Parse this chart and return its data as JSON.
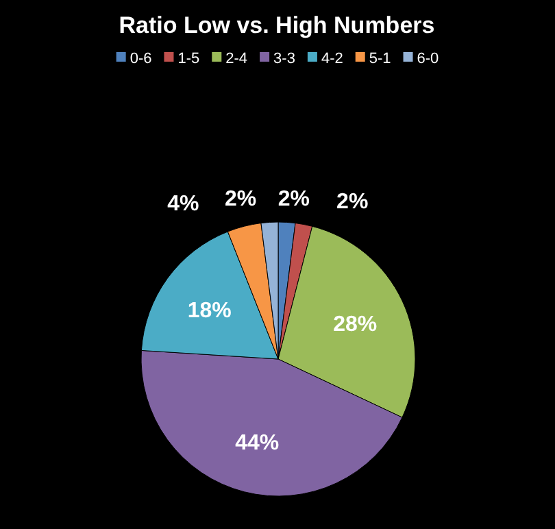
{
  "chart_data": {
    "type": "pie",
    "title": "Ratio Low vs. High Numbers",
    "categories": [
      "0-6",
      "1-5",
      "2-4",
      "3-3",
      "4-2",
      "5-1",
      "6-0"
    ],
    "values": [
      2,
      2,
      28,
      44,
      18,
      4,
      2
    ],
    "value_labels": [
      "2%",
      "2%",
      "28%",
      "44%",
      "18%",
      "4%",
      "2%"
    ],
    "colors": [
      "#4f81bd",
      "#c0504d",
      "#9bbb59",
      "#8064a2",
      "#4bacc6",
      "#f79646",
      "#95b3d7"
    ],
    "legend": "top"
  }
}
